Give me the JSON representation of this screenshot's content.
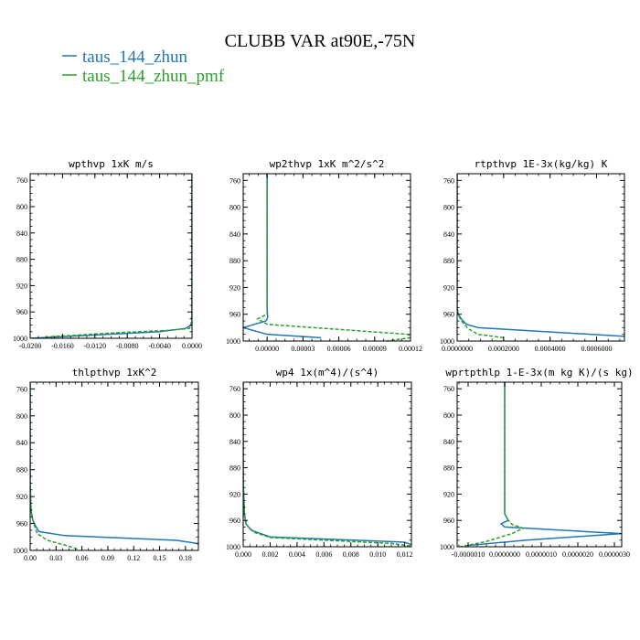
{
  "figure": {
    "title": "CLUBB VAR at90E,-75N",
    "legend": [
      {
        "label": "taus_144_zhun",
        "color": "#1f77b4",
        "dash": "solid"
      },
      {
        "label": "taus_144_zhun_pmf",
        "color": "#2ca02c",
        "dash": "dashed"
      }
    ]
  },
  "chart_data": [
    {
      "type": "line",
      "title": "wpthvp  1xK m/s",
      "xlim": [
        -0.02,
        0.0
      ],
      "xticks": [
        "-0.0200",
        "-0.0160",
        "-0.0120",
        "-0.0080",
        "-0.0040",
        "0.0000"
      ],
      "xtick_values": [
        -0.02,
        -0.016,
        -0.012,
        -0.008,
        -0.004,
        0.0
      ],
      "ylim": [
        1000,
        750
      ],
      "yticks": [
        "760",
        "800",
        "840",
        "880",
        "920",
        "960",
        "1000"
      ],
      "ytick_values": [
        760,
        800,
        840,
        880,
        920,
        960,
        1000
      ],
      "series": [
        {
          "color": "#1f77b4",
          "dash": "solid",
          "x": [
            0.0,
            0.0,
            0.0,
            0.0,
            -0.0001,
            -0.0008,
            -0.004,
            -0.012,
            -0.02
          ],
          "y": [
            750,
            900,
            960,
            975,
            980,
            985,
            990,
            995,
            1000
          ]
        },
        {
          "color": "#2ca02c",
          "dash": "dashed",
          "x": [
            0.0,
            0.0,
            0.0,
            -0.0001,
            -0.0003,
            -0.003,
            -0.01,
            -0.018
          ],
          "y": [
            750,
            900,
            960,
            978,
            985,
            988,
            992,
            998
          ]
        }
      ]
    },
    {
      "type": "line",
      "title": "wp2thvp  1xK m^2/s^2",
      "xlim": [
        -2e-05,
        0.00012
      ],
      "xticks": [
        "0.00000",
        "0.00003",
        "0.00006",
        "0.00009",
        "0.00012"
      ],
      "xtick_values": [
        0.0,
        3e-05,
        6e-05,
        9e-05,
        0.00012
      ],
      "ylim": [
        1000,
        750
      ],
      "yticks": [
        "760",
        "800",
        "840",
        "880",
        "920",
        "960",
        "1000"
      ],
      "ytick_values": [
        760,
        800,
        840,
        880,
        920,
        960,
        1000
      ],
      "series": [
        {
          "color": "#1f77b4",
          "dash": "solid",
          "x": [
            0.0,
            0.0,
            0.0,
            5e-07,
            -1e-06,
            -2e-05,
            0.0,
            4.5e-05
          ],
          "y": [
            750,
            900,
            950,
            965,
            970,
            980,
            990,
            995
          ]
        },
        {
          "color": "#2ca02c",
          "dash": "dashed",
          "x": [
            0.0,
            0.0,
            0.0,
            -8e-06,
            0.0,
            0.000118,
            0.00012,
            0.0001
          ],
          "y": [
            750,
            900,
            960,
            967,
            975,
            990,
            995,
            1000
          ]
        }
      ]
    },
    {
      "type": "line",
      "title": "rtpthvp  1E-3x(kg/kg) K",
      "xlim": [
        0.0,
        0.00072
      ],
      "xticks": [
        "0.0000000",
        "0.0002000",
        "0.0004000",
        "0.0006000"
      ],
      "xtick_values": [
        0.0,
        0.0002,
        0.0004,
        0.0006
      ],
      "ylim": [
        1000,
        750
      ],
      "yticks": [
        "760",
        "800",
        "840",
        "880",
        "920",
        "960",
        "1000"
      ],
      "ytick_values": [
        760,
        800,
        840,
        880,
        920,
        960,
        1000
      ],
      "series": [
        {
          "color": "#1f77b4",
          "dash": "solid",
          "x": [
            0.0,
            0.0,
            0.0,
            5e-06,
            2e-05,
            4e-05,
            9e-05,
            0.00072
          ],
          "y": [
            750,
            900,
            950,
            960,
            968,
            975,
            980,
            993
          ]
        },
        {
          "color": "#2ca02c",
          "dash": "dashed",
          "x": [
            0.0,
            0.0,
            0.0,
            4e-06,
            1.5e-05,
            3e-05,
            5e-05,
            9e-05,
            0.0002
          ],
          "y": [
            750,
            900,
            950,
            960,
            968,
            975,
            982,
            990,
            995
          ]
        }
      ]
    },
    {
      "type": "line",
      "title": "thlpthvp  1xK^2",
      "xlim": [
        0.0,
        0.195
      ],
      "xticks": [
        "0.00",
        "0.03",
        "0.06",
        "0.09",
        "0.12",
        "0.15",
        "0.18"
      ],
      "xtick_values": [
        0.0,
        0.03,
        0.06,
        0.09,
        0.12,
        0.15,
        0.18
      ],
      "ylim": [
        1000,
        750
      ],
      "yticks": [
        "760",
        "800",
        "840",
        "880",
        "920",
        "960",
        "1000"
      ],
      "ytick_values": [
        760,
        800,
        840,
        880,
        920,
        960,
        1000
      ],
      "series": [
        {
          "color": "#1f77b4",
          "dash": "solid",
          "x": [
            0.0,
            0.0,
            0.001,
            0.003,
            0.006,
            0.01,
            0.04,
            0.17,
            0.195
          ],
          "y": [
            750,
            900,
            940,
            955,
            963,
            972,
            978,
            985,
            990
          ]
        },
        {
          "color": "#2ca02c",
          "dash": "dashed",
          "x": [
            0.0,
            0.0,
            0.001,
            0.003,
            0.005,
            0.008,
            0.02,
            0.04,
            0.055
          ],
          "y": [
            750,
            900,
            940,
            955,
            963,
            975,
            985,
            992,
            998
          ]
        }
      ]
    },
    {
      "type": "line",
      "title": "wp4  1x(m^4)/(s^4)",
      "xlim": [
        0.0,
        0.0125
      ],
      "xticks": [
        "0.000",
        "0.002",
        "0.004",
        "0.006",
        "0.008",
        "0.010",
        "0.012"
      ],
      "xtick_values": [
        0.0,
        0.002,
        0.004,
        0.006,
        0.008,
        0.01,
        0.012
      ],
      "ylim": [
        1000,
        750
      ],
      "yticks": [
        "760",
        "800",
        "840",
        "880",
        "920",
        "960",
        "1000"
      ],
      "ytick_values": [
        760,
        800,
        840,
        880,
        920,
        960,
        1000
      ],
      "series": [
        {
          "color": "#1f77b4",
          "dash": "solid",
          "x": [
            0.0,
            0.0,
            0.0001,
            0.0002,
            0.0006,
            0.002,
            0.012,
            0.0125
          ],
          "y": [
            750,
            900,
            950,
            965,
            975,
            985,
            993,
            997
          ]
        },
        {
          "color": "#2ca02c",
          "dash": "dashed",
          "x": [
            0.0,
            0.0,
            0.0001,
            0.0003,
            0.0008,
            0.002,
            0.011,
            0.0125
          ],
          "y": [
            750,
            900,
            955,
            968,
            978,
            986,
            995,
            999
          ]
        }
      ]
    },
    {
      "type": "line",
      "title": "wprtpthlp  1-E-3x(m kg K)/(s kg)",
      "xlim": [
        -1.3e-06,
        3.2e-06
      ],
      "xticks": [
        "-0.0000010",
        "0.0000000",
        "0.0000010",
        "0.0000020",
        "0.0000030"
      ],
      "xtick_values": [
        -1e-06,
        0.0,
        1e-06,
        2e-06,
        3e-06
      ],
      "ylim": [
        1000,
        750
      ],
      "yticks": [
        "760",
        "800",
        "840",
        "880",
        "920",
        "960",
        "1000"
      ],
      "ytick_values": [
        760,
        800,
        840,
        880,
        920,
        960,
        1000
      ],
      "series": [
        {
          "color": "#1f77b4",
          "dash": "solid",
          "x": [
            0.0,
            0.0,
            0.0,
            1e-07,
            -1e-07,
            0.0,
            3.2e-06,
            6e-07,
            -1e-06
          ],
          "y": [
            750,
            900,
            950,
            960,
            965,
            970,
            980,
            990,
            998
          ]
        },
        {
          "color": "#2ca02c",
          "dash": "dashed",
          "x": [
            0.0,
            0.0,
            0.0,
            1e-07,
            2e-07,
            5e-07,
            2e-07,
            -5e-07,
            -1.2e-06
          ],
          "y": [
            750,
            900,
            950,
            960,
            966,
            972,
            980,
            992,
            1000
          ]
        }
      ]
    }
  ]
}
